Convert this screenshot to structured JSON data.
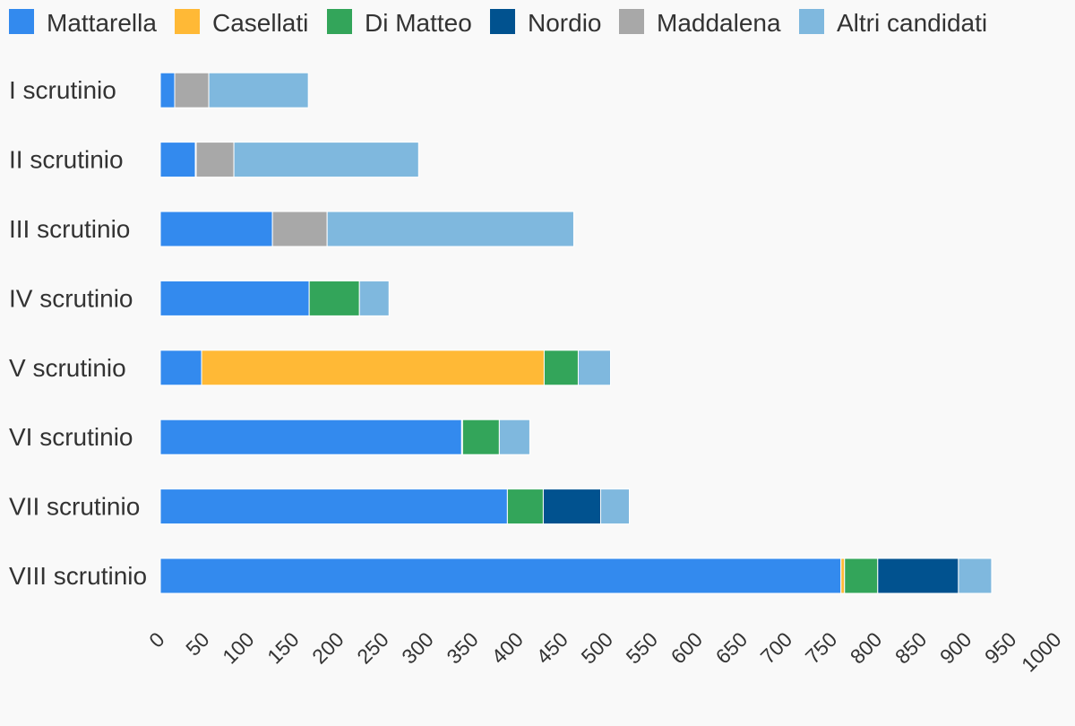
{
  "chart_data": {
    "type": "bar",
    "orientation": "horizontal",
    "stacked": true,
    "categories": [
      "I scrutinio",
      "II scrutinio",
      "III scrutinio",
      "IV scrutinio",
      "V scrutinio",
      "VI scrutinio",
      "VII scrutinio",
      "VIII scrutinio"
    ],
    "series": [
      {
        "name": "Mattarella",
        "color": "#338AEE",
        "values": [
          16,
          39,
          125,
          166,
          46,
          336,
          387,
          759
        ]
      },
      {
        "name": "Casellati",
        "color": "#FFB936",
        "values": [
          0,
          1,
          0,
          0,
          382,
          1,
          0,
          4
        ]
      },
      {
        "name": "Di Matteo",
        "color": "#33A55A",
        "values": [
          0,
          0,
          0,
          56,
          38,
          41,
          40,
          37
        ]
      },
      {
        "name": "Nordio",
        "color": "#01528F",
        "values": [
          0,
          0,
          0,
          0,
          0,
          0,
          64,
          90
        ]
      },
      {
        "name": "Maddalena",
        "color": "#A8A8A8",
        "values": [
          38,
          42,
          61,
          0,
          0,
          0,
          0,
          0
        ]
      },
      {
        "name": "Altri candidati",
        "color": "#7FB8DE",
        "values": [
          111,
          206,
          275,
          33,
          36,
          34,
          32,
          37
        ]
      }
    ],
    "xlim": [
      0,
      1000
    ],
    "xticks": [
      0,
      50,
      100,
      150,
      200,
      250,
      300,
      350,
      400,
      450,
      500,
      550,
      600,
      650,
      700,
      750,
      800,
      850,
      900,
      950,
      1000
    ],
    "grid": false,
    "legend_position": "top"
  }
}
